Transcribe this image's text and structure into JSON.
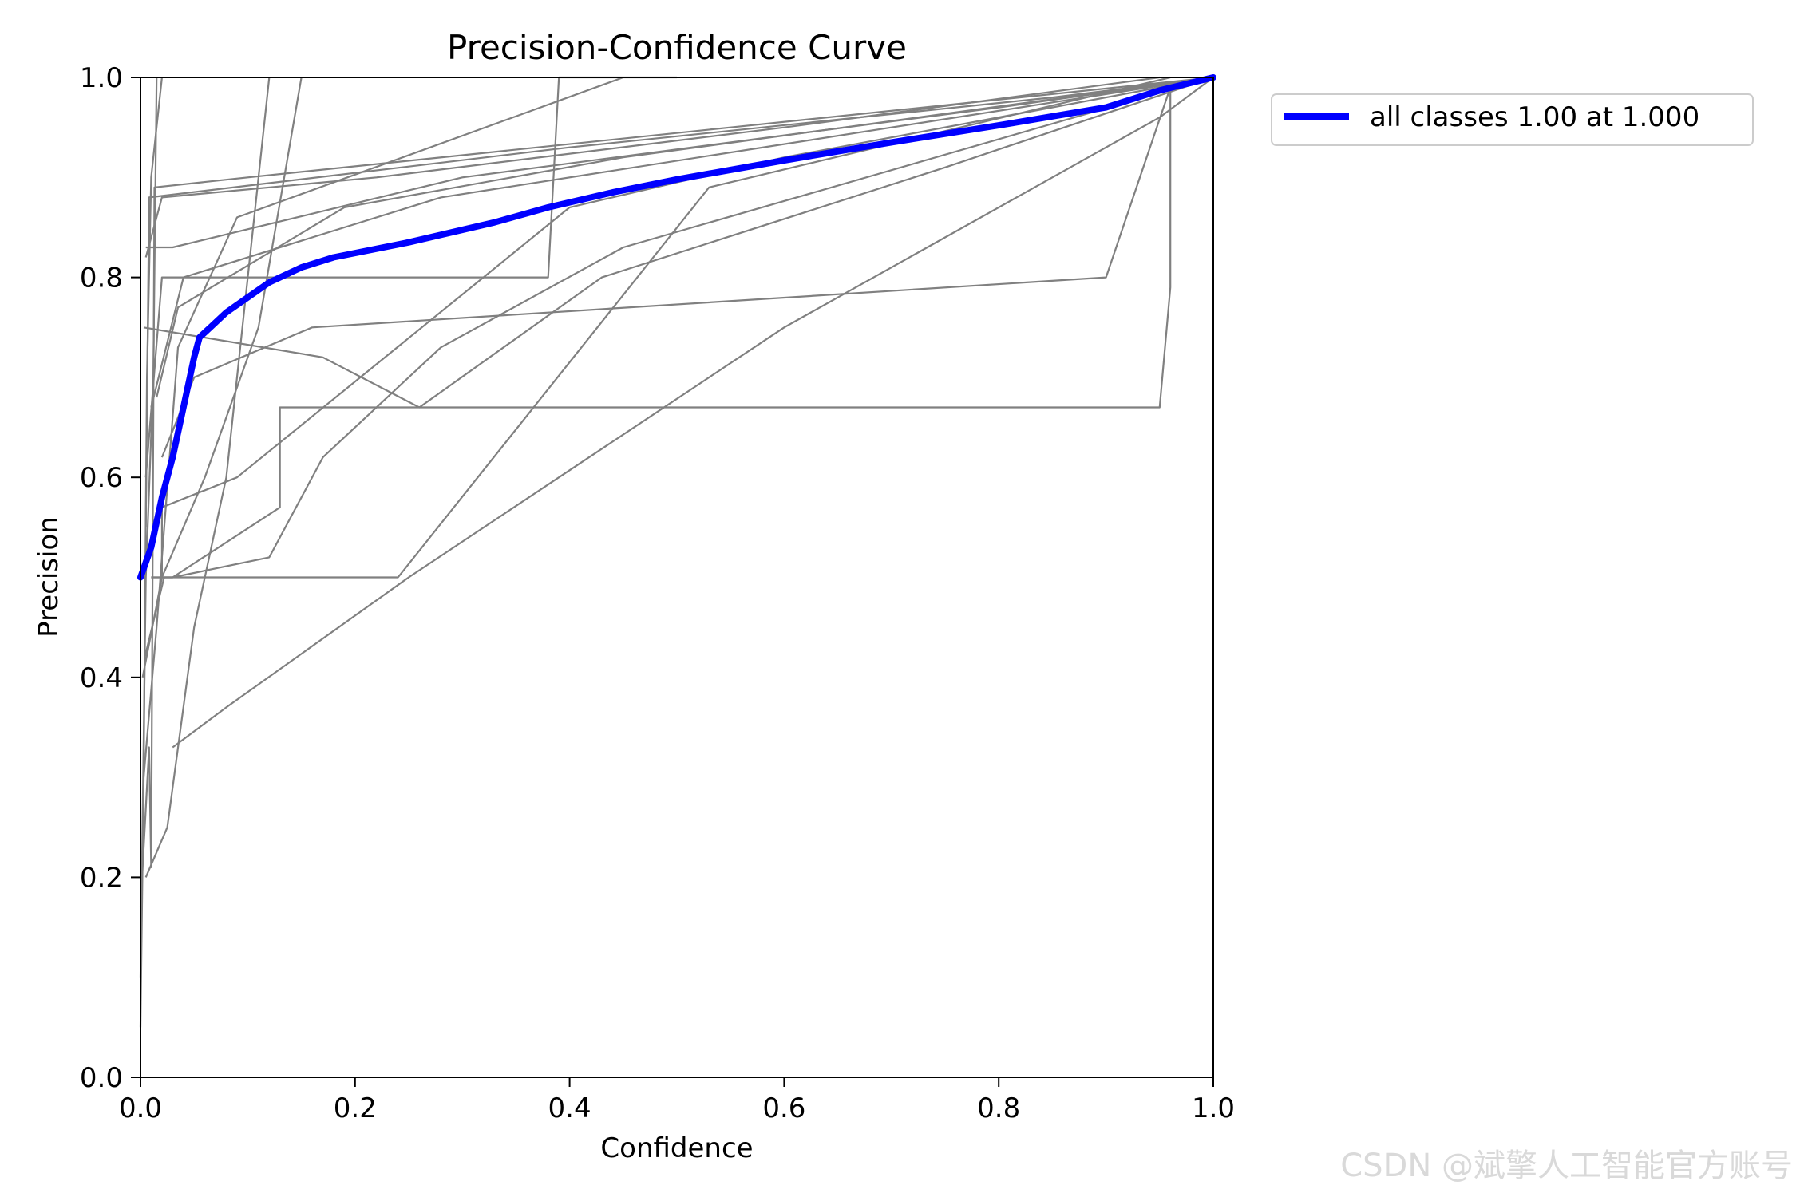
{
  "chart_data": {
    "type": "line",
    "title": "Precision-Confidence Curve",
    "xlabel": "Confidence",
    "ylabel": "Precision",
    "xlim": [
      0,
      1
    ],
    "ylim": [
      0,
      1
    ],
    "x_ticks": [
      "0.0",
      "0.2",
      "0.4",
      "0.6",
      "0.8",
      "1.0"
    ],
    "y_ticks": [
      "0.0",
      "0.2",
      "0.4",
      "0.6",
      "0.8",
      "1.0"
    ],
    "grid": false,
    "legend": {
      "placement": "outside-top-right",
      "entries": [
        {
          "label": "all classes 1.00 at 1.000",
          "color": "#0000ff"
        }
      ]
    },
    "main_series": {
      "name": "all classes 1.00 at 1.000",
      "color": "#0000ff",
      "points": [
        [
          0,
          0.5
        ],
        [
          0.01,
          0.53
        ],
        [
          0.02,
          0.58
        ],
        [
          0.03,
          0.62
        ],
        [
          0.04,
          0.67
        ],
        [
          0.05,
          0.72
        ],
        [
          0.055,
          0.74
        ],
        [
          0.065,
          0.75
        ],
        [
          0.08,
          0.765
        ],
        [
          0.1,
          0.78
        ],
        [
          0.12,
          0.795
        ],
        [
          0.15,
          0.81
        ],
        [
          0.18,
          0.82
        ],
        [
          0.25,
          0.835
        ],
        [
          0.33,
          0.855
        ],
        [
          0.38,
          0.87
        ],
        [
          0.44,
          0.885
        ],
        [
          0.5,
          0.898
        ],
        [
          0.6,
          0.917
        ],
        [
          0.7,
          0.935
        ],
        [
          0.8,
          0.952
        ],
        [
          0.9,
          0.97
        ],
        [
          0.95,
          0.987
        ],
        [
          1.0,
          1.0
        ]
      ]
    },
    "class_series": [
      {
        "points": [
          [
            0,
            0.05
          ],
          [
            0.003,
            0.3
          ],
          [
            0.006,
            0.7
          ],
          [
            0.01,
            0.9
          ],
          [
            0.02,
            1.0
          ]
        ]
      },
      {
        "points": [
          [
            0,
            0.1
          ],
          [
            0.005,
            0.5
          ],
          [
            0.012,
            0.7
          ],
          [
            0.015,
            1.0
          ]
        ]
      },
      {
        "points": [
          [
            0,
            0.17
          ],
          [
            0.008,
            0.33
          ],
          [
            0.01,
            0.21
          ],
          [
            0.013,
            0.89
          ],
          [
            0.1,
            0.9
          ],
          [
            0.55,
            0.95
          ],
          [
            1.0,
            1.0
          ]
        ]
      },
      {
        "points": [
          [
            0.002,
            0.4
          ],
          [
            0.02,
            0.5
          ],
          [
            0.06,
            0.6
          ],
          [
            0.11,
            0.75
          ],
          [
            0.15,
            1.0
          ]
        ]
      },
      {
        "points": [
          [
            0.005,
            0.2
          ],
          [
            0.025,
            0.25
          ],
          [
            0.05,
            0.45
          ],
          [
            0.08,
            0.6
          ],
          [
            0.12,
            1.0
          ]
        ]
      },
      {
        "points": [
          [
            0.003,
            0.3
          ],
          [
            0.015,
            0.45
          ],
          [
            0.035,
            0.73
          ],
          [
            0.09,
            0.86
          ],
          [
            0.45,
            1.0
          ]
        ]
      },
      {
        "points": [
          [
            0.004,
            0.42
          ],
          [
            0.022,
            0.5
          ],
          [
            0.09,
            0.5
          ],
          [
            0.24,
            0.5
          ],
          [
            0.53,
            0.89
          ],
          [
            0.96,
            1.0
          ]
        ]
      },
      {
        "points": [
          [
            0.01,
            0.5
          ],
          [
            0.03,
            0.5
          ],
          [
            0.13,
            0.57
          ],
          [
            0.13,
            0.67
          ],
          [
            0.95,
            0.67
          ],
          [
            0.96,
            0.79
          ],
          [
            0.96,
            0.99
          ],
          [
            1.0,
            1.0
          ]
        ]
      },
      {
        "points": [
          [
            0.01,
            0.5
          ],
          [
            0.02,
            0.5
          ],
          [
            0.02,
            0.57
          ],
          [
            0.09,
            0.6
          ],
          [
            0.4,
            0.87
          ],
          [
            0.6,
            0.92
          ],
          [
            1.0,
            1.0
          ]
        ]
      },
      {
        "points": [
          [
            0.005,
            0.6
          ],
          [
            0.02,
            0.8
          ],
          [
            0.38,
            0.8
          ],
          [
            0.39,
            1.0
          ],
          [
            0.5,
            1.0
          ]
        ]
      },
      {
        "points": [
          [
            0.003,
            0.75
          ],
          [
            0.17,
            0.72
          ],
          [
            0.26,
            0.67
          ],
          [
            0.43,
            0.8
          ],
          [
            0.75,
            0.91
          ],
          [
            1.0,
            1.0
          ]
        ]
      },
      {
        "points": [
          [
            0.005,
            0.82
          ],
          [
            0.02,
            0.88
          ],
          [
            0.22,
            0.9
          ],
          [
            0.6,
            0.95
          ],
          [
            0.95,
            1.0
          ]
        ]
      },
      {
        "points": [
          [
            0.005,
            0.83
          ],
          [
            0.03,
            0.83
          ],
          [
            0.3,
            0.9
          ],
          [
            0.8,
            0.97
          ],
          [
            1.0,
            1.0
          ]
        ]
      },
      {
        "points": [
          [
            0.005,
            0.55
          ],
          [
            0.008,
            0.88
          ],
          [
            0.4,
            0.93
          ],
          [
            0.85,
            0.98
          ],
          [
            1.0,
            1.0
          ]
        ]
      },
      {
        "points": [
          [
            0.01,
            0.67
          ],
          [
            0.04,
            0.8
          ],
          [
            0.28,
            0.88
          ],
          [
            0.7,
            0.95
          ],
          [
            1.0,
            1.0
          ]
        ]
      },
      {
        "points": [
          [
            0.015,
            0.68
          ],
          [
            0.035,
            0.77
          ],
          [
            0.19,
            0.87
          ],
          [
            0.45,
            0.92
          ],
          [
            1.0,
            1.0
          ]
        ]
      },
      {
        "points": [
          [
            0.02,
            0.62
          ],
          [
            0.05,
            0.7
          ],
          [
            0.16,
            0.75
          ],
          [
            0.9,
            0.8
          ],
          [
            0.96,
            0.99
          ],
          [
            1.0,
            1.0
          ]
        ]
      },
      {
        "points": [
          [
            0.03,
            0.33
          ],
          [
            0.08,
            0.37
          ],
          [
            0.25,
            0.5
          ],
          [
            0.6,
            0.75
          ],
          [
            0.95,
            0.96
          ],
          [
            1.0,
            1.0
          ]
        ]
      },
      {
        "points": [
          [
            0.02,
            0.5
          ],
          [
            0.03,
            0.5
          ],
          [
            0.12,
            0.52
          ],
          [
            0.17,
            0.62
          ],
          [
            0.28,
            0.73
          ],
          [
            0.45,
            0.83
          ],
          [
            1.0,
            1.0
          ]
        ]
      }
    ]
  },
  "watermark": "CSDN @斌擎人工智能官方账号"
}
